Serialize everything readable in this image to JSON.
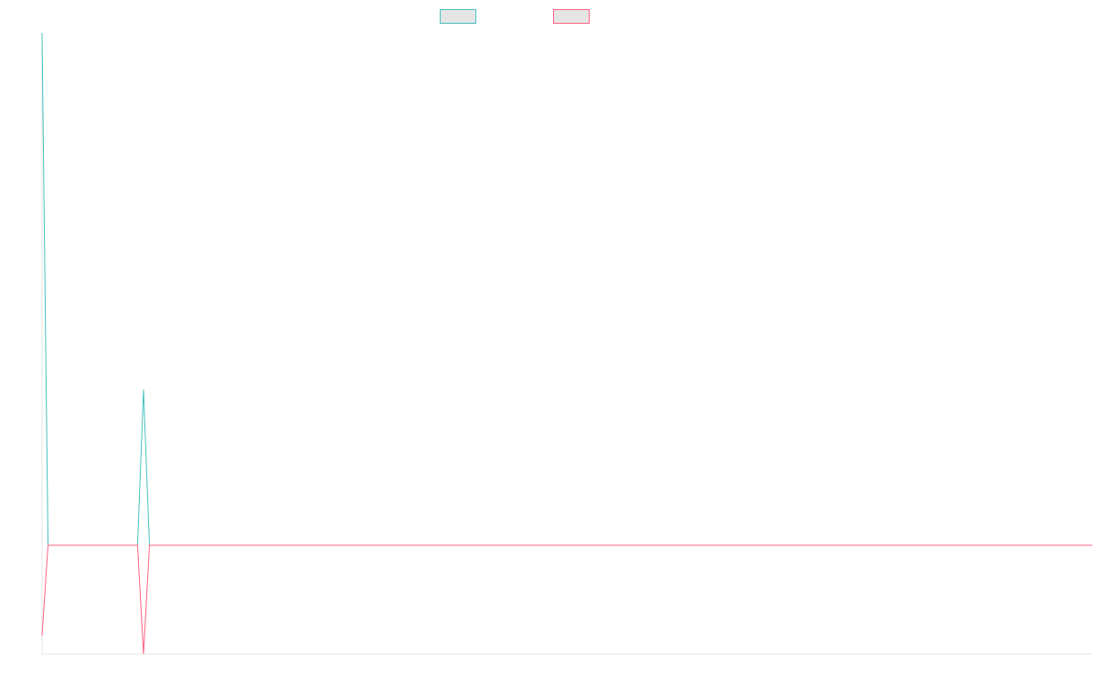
{
  "chart_data": {
    "type": "line",
    "title": "",
    "xlabel": "",
    "ylabel": "",
    "x": [
      0,
      1,
      2,
      3,
      4,
      5,
      6,
      7,
      8,
      9,
      10,
      11,
      12,
      13,
      14,
      15,
      16,
      17,
      18,
      19,
      20,
      21,
      22,
      23,
      24,
      25,
      26,
      27,
      28,
      29,
      30,
      31,
      32,
      33,
      34,
      35,
      36,
      37,
      38,
      39,
      40,
      41,
      42,
      43,
      44,
      45,
      46,
      47,
      48,
      49,
      50,
      51,
      52,
      53,
      54,
      55,
      56,
      57,
      58,
      59,
      60,
      61,
      62,
      63,
      64,
      65,
      66,
      67,
      68,
      69,
      70,
      71,
      72,
      73,
      74,
      75,
      76,
      77,
      78,
      79,
      80,
      81,
      82,
      83,
      84,
      85,
      86,
      87,
      88,
      89,
      90,
      91,
      92,
      93,
      94,
      95,
      96,
      97,
      98,
      99,
      100,
      101,
      102,
      103,
      104,
      105,
      106,
      107,
      108,
      109,
      110,
      111,
      112,
      113,
      114,
      115,
      116,
      117,
      118,
      119,
      120,
      121,
      122,
      123,
      124,
      125,
      126,
      127,
      128,
      129,
      130,
      131,
      132,
      133,
      134,
      135,
      136,
      137,
      138,
      139,
      140,
      141,
      142,
      143,
      144,
      145,
      146,
      147,
      148,
      149,
      150,
      151,
      152,
      153,
      154,
      155,
      156,
      157,
      158,
      159,
      160,
      161,
      162,
      163,
      164,
      165,
      166,
      167,
      168,
      169,
      170,
      171,
      172,
      173,
      174,
      175,
      176
    ],
    "ylim": [
      -10.6,
      50
    ],
    "grid": false,
    "legend_position": "top-center",
    "series": [
      {
        "color": "#4bc0c0",
        "fill": "#e5e5e5",
        "values": [
          50,
          0,
          0,
          0,
          0,
          0,
          0,
          0,
          0,
          0,
          0,
          0,
          0,
          0,
          0,
          0,
          0,
          15.2,
          0,
          0,
          0,
          0,
          0,
          0,
          0,
          0,
          0,
          0,
          0,
          0,
          0,
          0,
          0,
          0,
          0,
          0,
          0,
          0,
          0,
          0,
          0,
          0,
          0,
          0,
          0,
          0,
          0,
          0,
          0,
          0,
          0,
          0,
          0,
          0,
          0,
          0,
          0,
          0,
          0,
          0,
          0,
          0,
          0,
          0,
          0,
          0,
          0,
          0,
          0,
          0,
          0,
          0,
          0,
          0,
          0,
          0,
          0,
          0,
          0,
          0,
          0,
          0,
          0,
          0,
          0,
          0,
          0,
          0,
          0,
          0,
          0,
          0,
          0,
          0,
          0,
          0,
          0,
          0,
          0,
          0,
          0,
          0,
          0,
          0,
          0,
          0,
          0,
          0,
          0,
          0,
          0,
          0,
          0,
          0,
          0,
          0,
          0,
          0,
          0,
          0,
          0,
          0,
          0,
          0,
          0,
          0,
          0,
          0,
          0,
          0,
          0,
          0,
          0,
          0,
          0,
          0,
          0,
          0,
          0,
          0,
          0,
          0,
          0,
          0,
          0,
          0,
          0,
          0,
          0,
          0,
          0,
          0,
          0,
          0,
          0,
          0,
          0,
          0,
          0,
          0,
          0,
          0,
          0,
          0,
          0,
          0,
          0,
          0,
          0,
          0,
          0,
          0,
          0,
          0,
          0,
          0,
          0
        ]
      },
      {
        "color": "#ff6384",
        "fill": "#e5e5e5",
        "values": [
          -8.8,
          0,
          0,
          0,
          0,
          0,
          0,
          0,
          0,
          0,
          0,
          0,
          0,
          0,
          0,
          0,
          0,
          -10.6,
          0,
          0,
          0,
          0,
          0,
          0,
          0,
          0,
          0,
          0,
          0,
          0,
          0,
          0,
          0,
          0,
          0,
          0,
          0,
          0,
          0,
          0,
          0,
          0,
          0,
          0,
          0,
          0,
          0,
          0,
          0,
          0,
          0,
          0,
          0,
          0,
          0,
          0,
          0,
          0,
          0,
          0,
          0,
          0,
          0,
          0,
          0,
          0,
          0,
          0,
          0,
          0,
          0,
          0,
          0,
          0,
          0,
          0,
          0,
          0,
          0,
          0,
          0,
          0,
          0,
          0,
          0,
          0,
          0,
          0,
          0,
          0,
          0,
          0,
          0,
          0,
          0,
          0,
          0,
          0,
          0,
          0,
          0,
          0,
          0,
          0,
          0,
          0,
          0,
          0,
          0,
          0,
          0,
          0,
          0,
          0,
          0,
          0,
          0,
          0,
          0,
          0,
          0,
          0,
          0,
          0,
          0,
          0,
          0,
          0,
          0,
          0,
          0,
          0,
          0,
          0,
          0,
          0,
          0,
          0,
          0,
          0,
          0,
          0,
          0,
          0,
          0,
          0,
          0,
          0,
          0,
          0,
          0,
          0,
          0,
          0,
          0,
          0,
          0,
          0,
          0,
          0,
          0,
          0,
          0,
          0,
          0,
          0,
          0,
          0,
          0,
          0,
          0,
          0,
          0,
          0,
          0,
          0,
          0
        ]
      }
    ]
  }
}
